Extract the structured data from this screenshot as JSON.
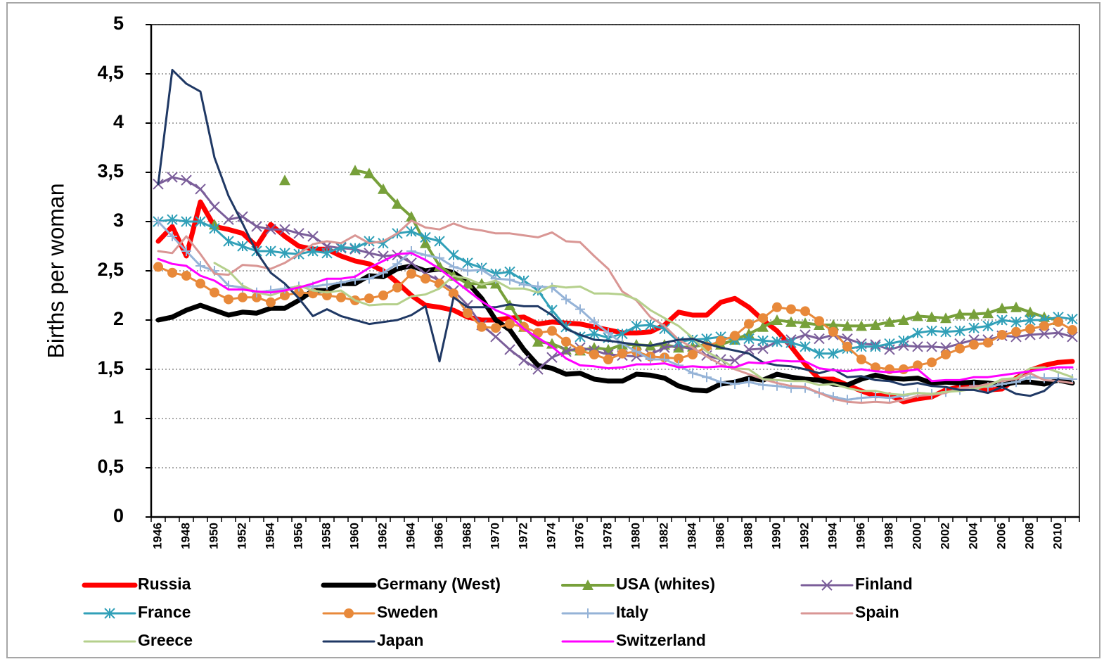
{
  "chart_data": {
    "type": "line",
    "ylabel": "Births per woman",
    "categories": [
      "1946",
      null,
      "1948",
      null,
      "1950",
      null,
      "1952",
      null,
      "1954",
      null,
      "1956",
      null,
      "1958",
      null,
      "1960",
      null,
      "1962",
      null,
      "1964",
      null,
      "1966",
      null,
      "1968",
      null,
      "1970",
      null,
      "1972",
      null,
      "1974",
      null,
      "1976",
      null,
      "1978",
      null,
      "1980",
      null,
      "1982",
      null,
      "1984",
      null,
      "1986",
      null,
      "1988",
      null,
      "1990",
      null,
      "1992",
      null,
      "1994",
      null,
      "1996",
      null,
      "1998",
      null,
      "2000",
      null,
      "2002",
      null,
      "2004",
      null,
      "2006",
      null,
      "2008",
      null,
      "2010",
      null
    ],
    "ylim": [
      0,
      5
    ],
    "yticks": [
      0,
      {
        "value": 0.5,
        "label": "0,5"
      },
      1,
      {
        "value": 1.5,
        "label": "1,5"
      },
      2,
      {
        "value": 2.5,
        "label": "2,5"
      },
      3,
      {
        "value": 3.5,
        "label": "3,5"
      },
      4,
      {
        "value": 4.5,
        "label": "4,5"
      },
      5
    ],
    "grid": true,
    "legend": "bottom",
    "series": [
      {
        "name": "Russia",
        "color": "#ff0000",
        "marker": "none",
        "line_width": 7,
        "values": [
          2.8,
          2.95,
          2.65,
          3.2,
          2.95,
          2.92,
          2.88,
          2.75,
          2.97,
          2.85,
          2.75,
          2.72,
          2.72,
          2.65,
          2.6,
          2.57,
          2.5,
          2.38,
          2.25,
          2.15,
          2.13,
          2.1,
          2.03,
          2.0,
          2.0,
          2.02,
          2.03,
          1.96,
          1.98,
          1.97,
          1.96,
          1.93,
          1.9,
          1.87,
          1.87,
          1.88,
          1.95,
          2.08,
          2.05,
          2.05,
          2.18,
          2.22,
          2.13,
          2.0,
          1.89,
          1.73,
          1.55,
          1.4,
          1.4,
          1.34,
          1.28,
          1.23,
          1.24,
          1.17,
          1.2,
          1.22,
          1.29,
          1.32,
          1.34,
          1.29,
          1.3,
          1.41,
          1.49,
          1.54,
          1.57,
          1.58
        ]
      },
      {
        "name": "Germany (West)",
        "color": "#000000",
        "marker": "none",
        "line_width": 7,
        "values": [
          2.0,
          2.03,
          2.1,
          2.15,
          2.1,
          2.05,
          2.08,
          2.07,
          2.12,
          2.12,
          2.2,
          2.3,
          2.3,
          2.37,
          2.37,
          2.45,
          2.44,
          2.52,
          2.55,
          2.5,
          2.52,
          2.48,
          2.38,
          2.22,
          2.0,
          1.9,
          1.7,
          1.54,
          1.51,
          1.45,
          1.46,
          1.4,
          1.38,
          1.38,
          1.45,
          1.44,
          1.41,
          1.33,
          1.29,
          1.28,
          1.35,
          1.37,
          1.41,
          1.39,
          1.45,
          1.42,
          1.4,
          1.39,
          1.35,
          1.34,
          1.4,
          1.44,
          1.41,
          1.4,
          1.41,
          1.36,
          1.37,
          1.36,
          1.37,
          1.36,
          1.34,
          1.37,
          1.37,
          1.35,
          1.39,
          1.36
        ]
      },
      {
        "name": "USA (whites)",
        "color": "#77a03a",
        "marker": "triangle",
        "line_width": 4,
        "values": [
          null,
          null,
          null,
          null,
          2.97,
          null,
          null,
          null,
          null,
          3.42,
          null,
          null,
          null,
          null,
          3.52,
          3.49,
          3.33,
          3.18,
          3.05,
          2.78,
          2.55,
          2.45,
          2.37,
          2.37,
          2.37,
          2.15,
          1.93,
          1.78,
          1.76,
          1.7,
          1.69,
          1.72,
          1.7,
          1.75,
          1.75,
          1.74,
          1.75,
          1.72,
          1.73,
          1.75,
          1.75,
          1.8,
          1.86,
          1.93,
          2.0,
          1.98,
          1.97,
          1.95,
          1.95,
          1.94,
          1.94,
          1.95,
          1.98,
          2.0,
          2.04,
          2.03,
          2.02,
          2.06,
          2.06,
          2.07,
          2.12,
          2.13,
          2.08,
          2.03,
          2.0,
          null
        ]
      },
      {
        "name": "Finland",
        "color": "#7b5e9a",
        "marker": "x",
        "line_width": 3,
        "values": [
          3.38,
          3.45,
          3.42,
          3.33,
          3.15,
          3.02,
          3.05,
          2.95,
          2.92,
          2.92,
          2.88,
          2.85,
          2.75,
          2.73,
          2.72,
          2.68,
          2.65,
          2.66,
          2.58,
          2.47,
          2.4,
          2.3,
          2.15,
          1.95,
          1.83,
          1.7,
          1.59,
          1.5,
          1.62,
          1.68,
          1.72,
          1.69,
          1.65,
          1.64,
          1.63,
          1.65,
          1.72,
          1.74,
          1.7,
          1.64,
          1.6,
          1.59,
          1.7,
          1.71,
          1.78,
          1.8,
          1.85,
          1.81,
          1.85,
          1.81,
          1.76,
          1.75,
          1.7,
          1.74,
          1.73,
          1.73,
          1.72,
          1.76,
          1.8,
          1.8,
          1.84,
          1.83,
          1.85,
          1.86,
          1.87,
          1.83
        ]
      },
      {
        "name": "France",
        "color": "#31a0b8",
        "marker": "asterisk",
        "line_width": 3,
        "values": [
          3.0,
          3.02,
          3.0,
          3.0,
          2.93,
          2.8,
          2.75,
          2.7,
          2.7,
          2.68,
          2.67,
          2.7,
          2.68,
          2.74,
          2.73,
          2.8,
          2.78,
          2.88,
          2.9,
          2.84,
          2.8,
          2.66,
          2.58,
          2.53,
          2.47,
          2.49,
          2.4,
          2.3,
          2.1,
          1.93,
          1.83,
          1.86,
          1.82,
          1.86,
          1.94,
          1.95,
          1.91,
          1.78,
          1.8,
          1.81,
          1.83,
          1.8,
          1.81,
          1.79,
          1.78,
          1.77,
          1.73,
          1.66,
          1.66,
          1.71,
          1.73,
          1.73,
          1.76,
          1.79,
          1.87,
          1.89,
          1.88,
          1.89,
          1.92,
          1.94,
          2.0,
          1.98,
          2.0,
          2.0,
          2.03,
          2.01
        ]
      },
      {
        "name": "Sweden",
        "color": "#e8893a",
        "marker": "circle",
        "line_width": 3,
        "values": [
          2.54,
          2.48,
          2.45,
          2.37,
          2.28,
          2.21,
          2.23,
          2.23,
          2.18,
          2.25,
          2.28,
          2.27,
          2.25,
          2.23,
          2.2,
          2.22,
          2.25,
          2.33,
          2.47,
          2.42,
          2.37,
          2.27,
          2.07,
          1.93,
          1.92,
          1.96,
          1.93,
          1.87,
          1.89,
          1.78,
          1.69,
          1.65,
          1.6,
          1.66,
          1.68,
          1.63,
          1.62,
          1.61,
          1.65,
          1.73,
          1.79,
          1.84,
          1.96,
          2.02,
          2.13,
          2.11,
          2.09,
          1.99,
          1.88,
          1.73,
          1.6,
          1.52,
          1.5,
          1.5,
          1.54,
          1.57,
          1.65,
          1.71,
          1.75,
          1.77,
          1.85,
          1.88,
          1.91,
          1.94,
          1.98,
          1.9
        ]
      },
      {
        "name": "Italy",
        "color": "#95b3d7",
        "marker": "plus",
        "line_width": 3,
        "values": [
          3.0,
          2.85,
          2.7,
          2.55,
          2.5,
          2.35,
          2.33,
          2.28,
          2.3,
          2.32,
          2.34,
          2.34,
          2.36,
          2.38,
          2.41,
          2.42,
          2.48,
          2.57,
          2.7,
          2.66,
          2.63,
          2.54,
          2.5,
          2.51,
          2.42,
          2.41,
          2.36,
          2.34,
          2.33,
          2.21,
          2.11,
          1.98,
          1.87,
          1.76,
          1.68,
          1.6,
          1.6,
          1.54,
          1.46,
          1.42,
          1.37,
          1.35,
          1.37,
          1.34,
          1.33,
          1.31,
          1.31,
          1.26,
          1.22,
          1.19,
          1.21,
          1.22,
          1.21,
          1.23,
          1.26,
          1.25,
          1.27,
          1.29,
          1.33,
          1.32,
          1.35,
          1.37,
          1.42,
          1.41,
          1.41,
          1.4
        ]
      },
      {
        "name": "Spain",
        "color": "#d99694",
        "marker": "none",
        "line_width": 3,
        "values": [
          2.7,
          2.68,
          2.85,
          2.67,
          2.47,
          2.46,
          2.56,
          2.55,
          2.52,
          2.58,
          2.67,
          2.77,
          2.8,
          2.78,
          2.86,
          2.78,
          2.8,
          2.88,
          3.01,
          2.94,
          2.92,
          2.98,
          2.93,
          2.91,
          2.88,
          2.88,
          2.86,
          2.84,
          2.89,
          2.8,
          2.79,
          2.65,
          2.52,
          2.29,
          2.2,
          2.03,
          1.94,
          1.8,
          1.72,
          1.63,
          1.55,
          1.5,
          1.45,
          1.4,
          1.36,
          1.33,
          1.32,
          1.26,
          1.2,
          1.17,
          1.16,
          1.17,
          1.16,
          1.19,
          1.23,
          1.24,
          1.26,
          1.31,
          1.32,
          1.35,
          1.38,
          1.4,
          1.46,
          1.39,
          1.38,
          1.36
        ]
      },
      {
        "name": "Greece",
        "color": "#b5d08c",
        "marker": "none",
        "line_width": 3,
        "values": [
          null,
          null,
          null,
          null,
          2.58,
          2.5,
          2.35,
          2.28,
          2.25,
          2.3,
          2.35,
          2.3,
          2.28,
          2.3,
          2.2,
          2.15,
          2.16,
          2.16,
          2.24,
          2.26,
          2.32,
          2.45,
          2.42,
          2.36,
          2.4,
          2.32,
          2.32,
          2.28,
          2.35,
          2.33,
          2.34,
          2.27,
          2.27,
          2.26,
          2.21,
          2.1,
          2.02,
          1.94,
          1.82,
          1.68,
          1.6,
          1.51,
          1.5,
          1.4,
          1.39,
          1.38,
          1.38,
          1.34,
          1.35,
          1.31,
          1.28,
          1.28,
          1.25,
          1.24,
          1.26,
          1.25,
          1.27,
          1.28,
          1.3,
          1.33,
          1.4,
          1.41,
          1.51,
          1.52,
          1.47,
          1.42
        ]
      },
      {
        "name": "Japan",
        "color": "#1f3864",
        "marker": "none",
        "line_width": 3,
        "values": [
          3.38,
          4.54,
          4.4,
          4.32,
          3.65,
          3.26,
          2.98,
          2.69,
          2.48,
          2.37,
          2.22,
          2.04,
          2.11,
          2.04,
          2.0,
          1.96,
          1.98,
          2.0,
          2.05,
          2.14,
          1.58,
          2.23,
          2.13,
          2.13,
          2.13,
          2.16,
          2.14,
          2.14,
          2.05,
          1.91,
          1.85,
          1.8,
          1.79,
          1.77,
          1.75,
          1.74,
          1.77,
          1.8,
          1.81,
          1.76,
          1.72,
          1.69,
          1.66,
          1.57,
          1.54,
          1.53,
          1.5,
          1.46,
          1.5,
          1.42,
          1.43,
          1.39,
          1.38,
          1.34,
          1.36,
          1.33,
          1.32,
          1.29,
          1.29,
          1.26,
          1.32,
          1.25,
          1.23,
          1.28,
          1.4,
          null
        ]
      },
      {
        "name": "Switzerland",
        "color": "#ff00ff",
        "marker": "none",
        "line_width": 3,
        "values": [
          2.62,
          2.57,
          2.55,
          2.45,
          2.4,
          2.31,
          2.31,
          2.29,
          2.28,
          2.3,
          2.33,
          2.37,
          2.42,
          2.42,
          2.44,
          2.53,
          2.6,
          2.67,
          2.68,
          2.61,
          2.52,
          2.41,
          2.3,
          2.19,
          2.1,
          2.04,
          1.91,
          1.82,
          1.73,
          1.61,
          1.54,
          1.53,
          1.51,
          1.52,
          1.55,
          1.55,
          1.56,
          1.52,
          1.53,
          1.52,
          1.53,
          1.52,
          1.57,
          1.56,
          1.59,
          1.58,
          1.58,
          1.51,
          1.49,
          1.48,
          1.5,
          1.48,
          1.47,
          1.48,
          1.5,
          1.38,
          1.39,
          1.39,
          1.42,
          1.42,
          1.44,
          1.46,
          1.48,
          1.5,
          1.52,
          1.52
        ]
      }
    ]
  }
}
